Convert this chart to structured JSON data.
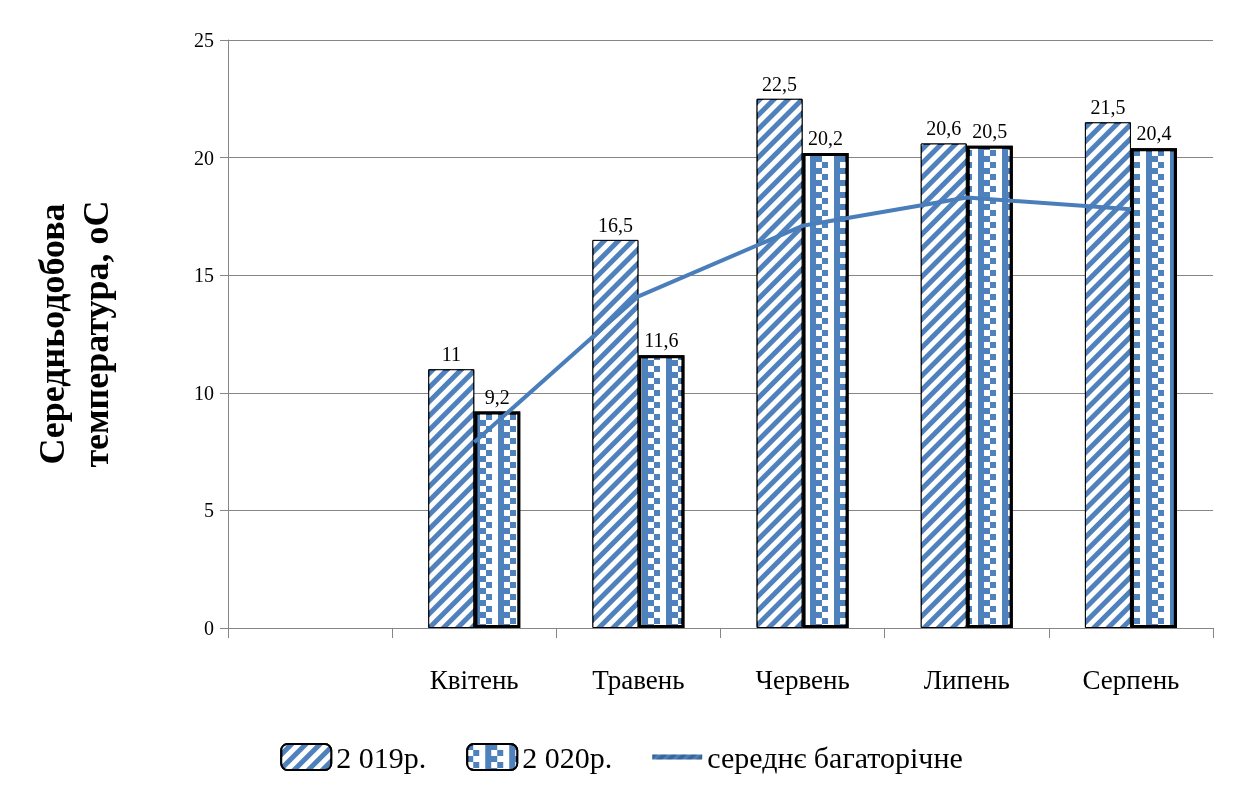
{
  "chart_data": {
    "type": "bar",
    "ylabel": "Середньодобова температура, oC",
    "categories": [
      null,
      "Квітень",
      "Травень",
      "Червень",
      "Липень",
      "Серпень"
    ],
    "series": [
      {
        "name": "2 019р.",
        "color": "#4f81bd",
        "values": [
          null,
          11,
          16.5,
          22.5,
          20.6,
          21.5
        ],
        "value_labels": [
          null,
          "11",
          "16,5",
          "22,5",
          "20,6",
          "21,5"
        ]
      },
      {
        "name": "2 020р.",
        "color": "#4f81bd",
        "values": [
          null,
          9.2,
          11.6,
          20.2,
          20.5,
          20.4
        ],
        "value_labels": [
          null,
          "9,2",
          "11,6",
          "20,2",
          "20,5",
          "20,4"
        ]
      },
      {
        "name": "середнє багаторічне",
        "type": "line",
        "color": "#4a7ebb",
        "values": [
          null,
          7.9,
          14.1,
          17.1,
          18.3,
          17.8
        ]
      }
    ],
    "ylim": [
      0,
      25
    ],
    "yticks": [
      0,
      5,
      10,
      15,
      20,
      25
    ],
    "grid": "y",
    "legend": "bottom"
  }
}
